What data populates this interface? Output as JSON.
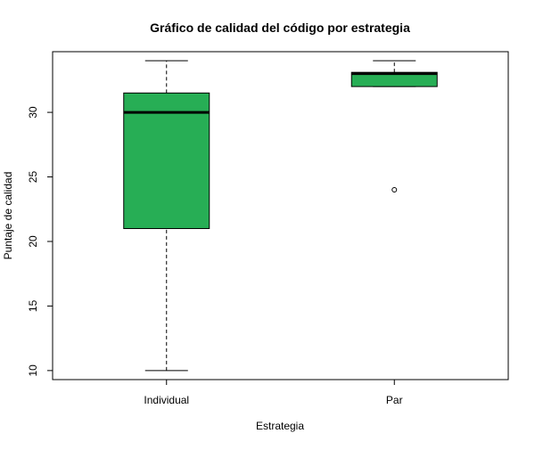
{
  "chart_data": {
    "type": "box",
    "title": "Gráfico de calidad del código por estrategia",
    "xlabel": "Estrategia",
    "ylabel": "Puntaje de calidad",
    "categories": [
      "Individual",
      "Par"
    ],
    "ylim": [
      9.3,
      34.7
    ],
    "yticks": [
      10,
      15,
      20,
      25,
      30
    ],
    "grid": false,
    "box_color": "#27ae55",
    "series": [
      {
        "category": "Individual",
        "whisker_low": 10,
        "q1": 21,
        "median": 30,
        "q3": 31.5,
        "whisker_high": 34,
        "outliers": []
      },
      {
        "category": "Par",
        "whisker_low": 32,
        "q1": 32,
        "median": 33,
        "q3": 33.1,
        "whisker_high": 34,
        "outliers": [
          24
        ]
      }
    ]
  }
}
